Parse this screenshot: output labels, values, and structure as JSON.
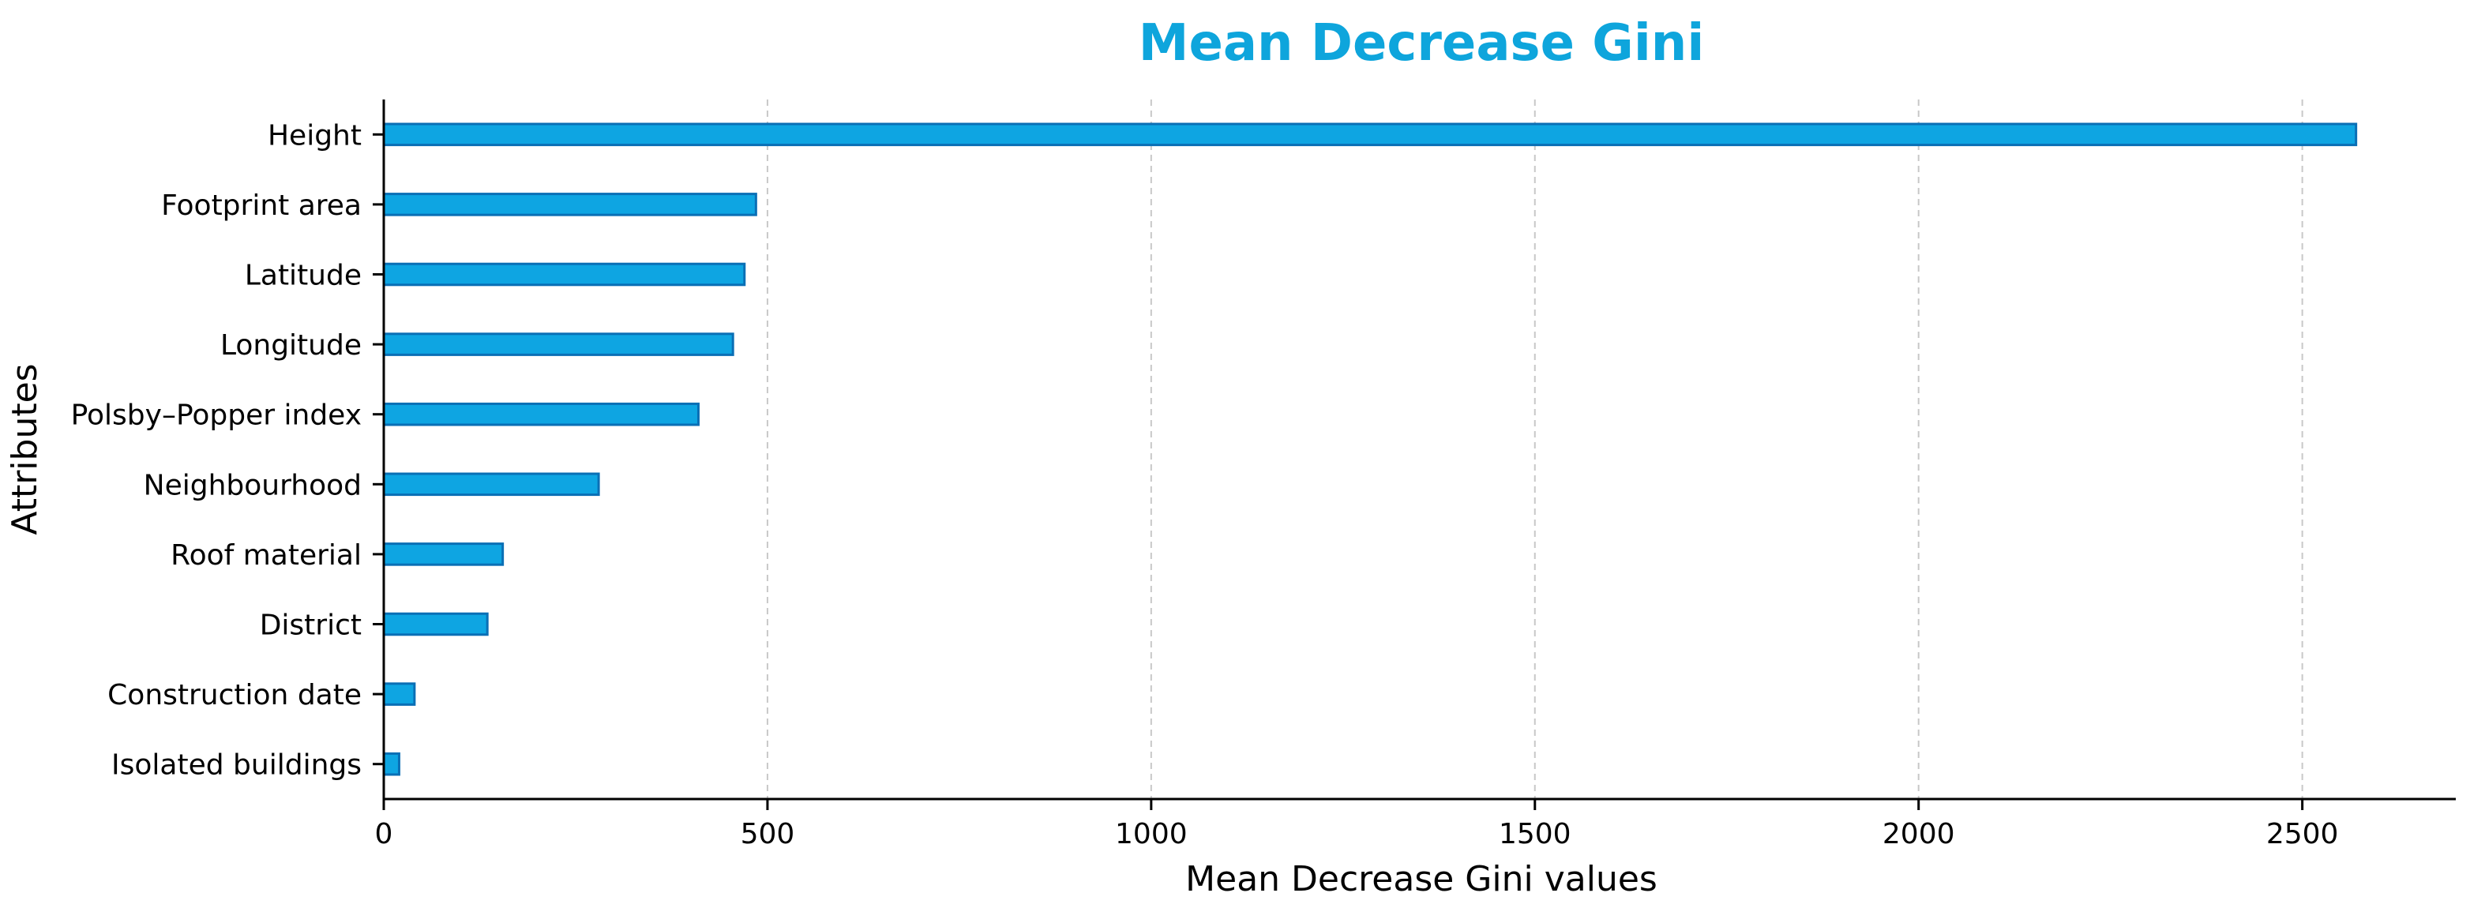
{
  "chart_data": {
    "type": "bar",
    "orientation": "horizontal",
    "title": "Mean Decrease Gini",
    "xlabel": "Mean Decrease Gini values",
    "ylabel": "Attributes",
    "categories": [
      "Height",
      "Footprint area",
      "Latitude",
      "Longitude",
      "Polsby–Popper index",
      "Neighbourhood",
      "Roof material",
      "District",
      "Construction date",
      "Isolated buildings"
    ],
    "values": [
      2570,
      485,
      470,
      455,
      410,
      280,
      155,
      135,
      40,
      20
    ],
    "xlim": [
      0,
      2700
    ],
    "xticks": [
      "0",
      "500",
      "1000",
      "1500",
      "2000",
      "2500"
    ],
    "grid": "vertical",
    "colors": {
      "title": "#0ea5dc",
      "bar_fill": "#0ea5e2",
      "bar_edge": "#0a6fb5"
    }
  }
}
